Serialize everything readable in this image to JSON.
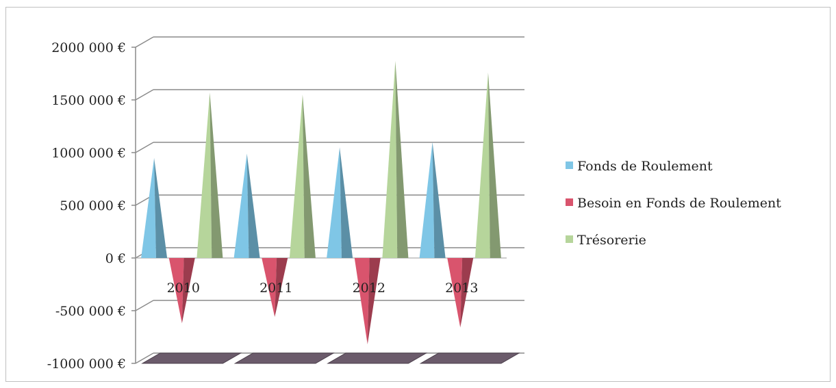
{
  "chart_data": {
    "type": "bar",
    "style": "3d-cone",
    "title": "",
    "xlabel": "",
    "ylabel": "",
    "categories": [
      "2010",
      "2011",
      "2012",
      "2013"
    ],
    "ylim": [
      -1000000,
      2000000
    ],
    "yticks": [
      2000000,
      1500000,
      1000000,
      500000,
      0,
      -500000,
      -1000000
    ],
    "ytick_labels": [
      "2000 000 €",
      "1500 000 €",
      "1000 000 €",
      "500 000 €",
      "0 €",
      "-500 000 €",
      "-1000 000 €"
    ],
    "grid": true,
    "legend_position": "right",
    "series": [
      {
        "name": "Fonds de Roulement",
        "color": "#7fc6e6",
        "values": [
          950000,
          990000,
          1050000,
          1100000
        ]
      },
      {
        "name": "Besoin en Fonds de Roulement",
        "color": "#d9546d",
        "values": [
          -620000,
          -560000,
          -820000,
          -660000
        ]
      },
      {
        "name": "Trésorerie",
        "color": "#b6d59b",
        "values": [
          1570000,
          1550000,
          1870000,
          1760000
        ]
      }
    ]
  }
}
